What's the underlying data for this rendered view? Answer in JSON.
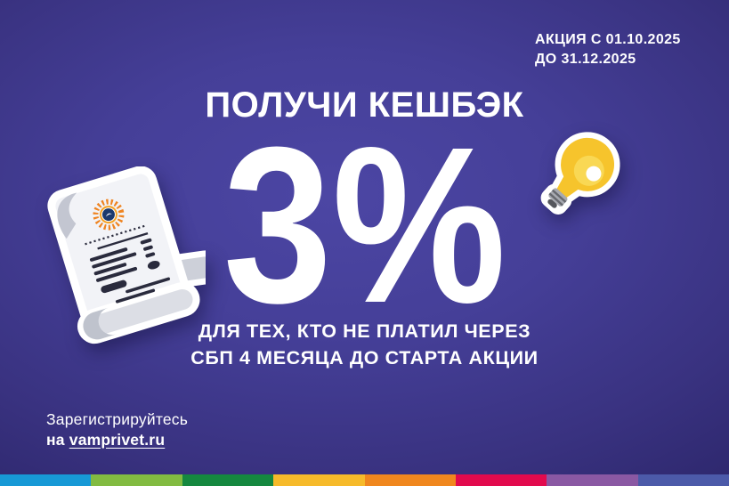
{
  "banner": {
    "period": {
      "line1": "АКЦИЯ С 01.10.2025",
      "line2": "ДО 31.12.2025"
    },
    "headline": "ПОЛУЧИ КЕШБЭК",
    "cashback_value": "3%",
    "condition": {
      "line1": "ДЛЯ ТЕХ, КТО НЕ ПЛАТИЛ ЧЕРЕЗ",
      "line2": "СБП 4 МЕСЯЦА ДО СТАРТА АКЦИИ"
    },
    "register": {
      "line1": "Зарегистрируйтесь",
      "prefix": "на ",
      "link": "vamprivet.ru"
    }
  },
  "icons": {
    "receipt": "receipt-scroll-illustration",
    "bulb": "lightbulb-sticker",
    "logo": "sun-energy-logo"
  },
  "colors": {
    "background_center": "#4c46a4",
    "background_edge": "#221e54",
    "text": "#ffffff",
    "bulb_yellow": "#f6c42c",
    "bulb_highlight": "#f9d854",
    "logo_orange": "#ef8421",
    "logo_navy": "#1c3a6e",
    "receipt_ink": "#2a2b3d",
    "stripe": [
      "#1799d6",
      "#82bb41",
      "#15883f",
      "#f6ba2a",
      "#f0871e",
      "#e20a4d",
      "#8a58a3",
      "#4c5aa9"
    ]
  }
}
